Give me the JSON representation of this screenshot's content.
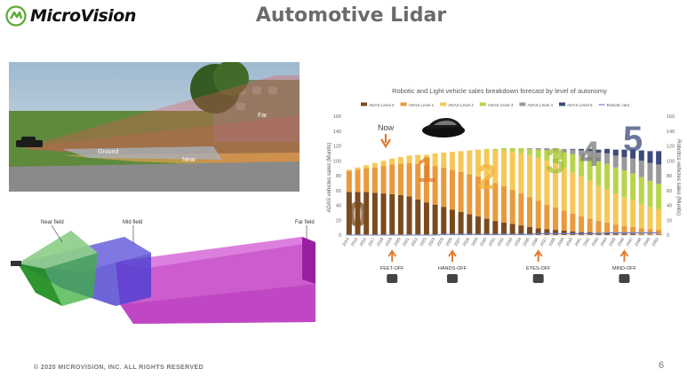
{
  "logo": {
    "text": "MicroVision",
    "icon": "microvision-logo-icon"
  },
  "title": "Automotive Lidar",
  "scene": {
    "labels": {
      "far": "Far",
      "ground": "Ground",
      "near": "Near"
    }
  },
  "fields": {
    "near": "Near field",
    "mid": "Mid field",
    "far": "Far field"
  },
  "chart": {
    "title": "Robotic and Light vehicle sales breakdown forecast by level of autonomy",
    "now_label": "Now",
    "milestones": [
      "FEET-OFF",
      "HANDS-OFF",
      "EYES-OFF",
      "MIND-OFF"
    ]
  },
  "chart_data": {
    "type": "bar",
    "title": "Robotic and Light vehicle sales breakdown forecast by level of autonomy",
    "xlabel": "",
    "ylabel": "ADAS vehicles sales (Munits)",
    "y2label": "Robotics vehicles sales (Munits)",
    "ylim": [
      0,
      160
    ],
    "y2lim": [
      0,
      160
    ],
    "yticks": [
      0,
      20,
      40,
      60,
      80,
      100,
      120,
      140,
      160
    ],
    "categories": [
      "2014",
      "2015",
      "2016",
      "2017",
      "2018",
      "2019",
      "2020",
      "2021",
      "2022",
      "2023",
      "2024",
      "2025",
      "2026",
      "2027",
      "2028",
      "2029",
      "2030",
      "2031",
      "2032",
      "2033",
      "2034",
      "2035",
      "2036",
      "2037",
      "2038",
      "2039",
      "2040",
      "2041",
      "2042",
      "2043",
      "2044",
      "2045",
      "2046",
      "2047",
      "2048",
      "2049",
      "2050"
    ],
    "stacked": true,
    "series": [
      {
        "name": "ADAS Level 0",
        "color": "#7a4a1f",
        "values": [
          58,
          58,
          58,
          57,
          56,
          55,
          54,
          52,
          48,
          44,
          41,
          38,
          34,
          31,
          28,
          25,
          22,
          19,
          17,
          15,
          13,
          11,
          9,
          8,
          7,
          6,
          5,
          4,
          4,
          3,
          3,
          2,
          2,
          2,
          1,
          1,
          1
        ]
      },
      {
        "name": "ADAS Level 1",
        "color": "#e89a3c",
        "values": [
          28,
          30,
          32,
          34,
          37,
          40,
          42,
          45,
          48,
          50,
          52,
          53,
          54,
          54,
          54,
          54,
          53,
          51,
          49,
          46,
          43,
          40,
          37,
          33,
          30,
          27,
          24,
          21,
          18,
          16,
          14,
          12,
          10,
          9,
          8,
          7,
          6
        ]
      },
      {
        "name": "ADAS Level 2",
        "color": "#f6c857",
        "values": [
          2,
          3,
          4,
          6,
          7,
          8,
          9,
          10,
          12,
          14,
          17,
          20,
          24,
          28,
          32,
          36,
          40,
          44,
          48,
          51,
          54,
          56,
          58,
          59,
          59,
          58,
          56,
          54,
          51,
          48,
          45,
          42,
          39,
          36,
          33,
          30,
          28
        ]
      },
      {
        "name": "ADAS Level 3",
        "color": "#b8d44c",
        "values": [
          0,
          0,
          0,
          0,
          0,
          0,
          0,
          0,
          0,
          0,
          0,
          0,
          0,
          0,
          0,
          0,
          1,
          2,
          3,
          5,
          7,
          9,
          11,
          14,
          17,
          20,
          24,
          27,
          30,
          32,
          34,
          35,
          36,
          36,
          36,
          35,
          34
        ]
      },
      {
        "name": "ADAS Level 4",
        "color": "#9a9a9a",
        "values": [
          0,
          0,
          0,
          0,
          0,
          0,
          0,
          0,
          0,
          0,
          0,
          0,
          0,
          0,
          0,
          0,
          0,
          0,
          0,
          0,
          0,
          1,
          2,
          3,
          4,
          5,
          6,
          8,
          10,
          12,
          14,
          16,
          18,
          20,
          22,
          24,
          26
        ]
      },
      {
        "name": "ADAS Level 5",
        "color": "#3b4a7a",
        "values": [
          0,
          0,
          0,
          0,
          0,
          0,
          0,
          0,
          0,
          0,
          0,
          0,
          0,
          0,
          0,
          0,
          0,
          0,
          0,
          0,
          0,
          0,
          0,
          0,
          0,
          0,
          1,
          2,
          3,
          4,
          6,
          8,
          10,
          12,
          14,
          16,
          18
        ]
      },
      {
        "name": "Robotic cars",
        "color": "#6a7fd0",
        "type": "line",
        "values": [
          0,
          0,
          0,
          0,
          0,
          0,
          0,
          0,
          0,
          0,
          0,
          1,
          1,
          1,
          1,
          1,
          1,
          1,
          1,
          1,
          1,
          1,
          2,
          2,
          2,
          2,
          2,
          2,
          2,
          2,
          3,
          3,
          3,
          3,
          3,
          3,
          3
        ]
      }
    ],
    "big_labels": [
      "0",
      "1",
      "2",
      "3",
      "4",
      "5"
    ],
    "legend": "top",
    "grid": false
  },
  "footer": "© 2020 MICROVISION, INC. ALL RIGHTS RESERVED",
  "page_number": "6"
}
